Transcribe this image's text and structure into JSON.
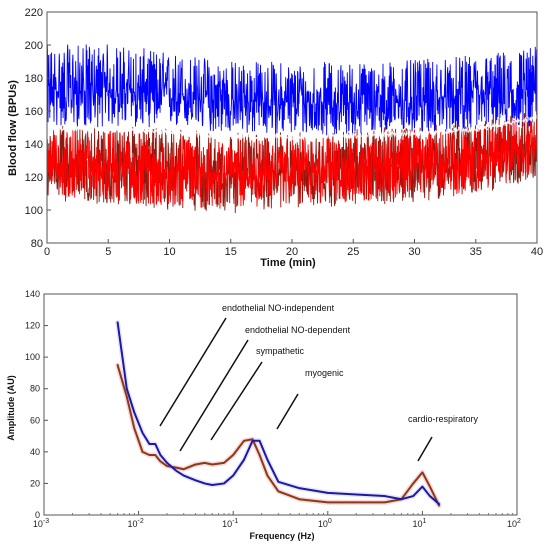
{
  "chart_data": [
    {
      "type": "line",
      "xlabel": "Time (min)",
      "ylabel": "Blood flow (BPUs)",
      "xlim": [
        0,
        40
      ],
      "ylim": [
        80,
        220
      ],
      "xticks": [
        "0",
        "5",
        "10",
        "15",
        "20",
        "25",
        "30",
        "35",
        "40"
      ],
      "yticks": [
        "80",
        "100",
        "120",
        "140",
        "160",
        "180",
        "200",
        "220"
      ],
      "grid": false,
      "colors": {
        "upper": "#0000ff",
        "lower": "#ff0000",
        "lower_shadow": "#8b1a10"
      },
      "series": [
        {
          "time_min": [
            0,
            5,
            10,
            15,
            20,
            25,
            30,
            35,
            40
          ],
          "mean": [
            172,
            172,
            170,
            166,
            165,
            165,
            166,
            168,
            172
          ],
          "range_low": [
            150,
            150,
            150,
            146,
            145,
            145,
            146,
            148,
            150
          ],
          "range_high": [
            200,
            201,
            196,
            191,
            190,
            190,
            191,
            194,
            200
          ]
        },
        {
          "time_min": [
            0,
            5,
            10,
            15,
            20,
            25,
            30,
            35,
            40
          ],
          "mean": [
            128,
            126,
            124,
            123,
            124,
            125,
            127,
            130,
            140
          ],
          "range_low": [
            107,
            104,
            101,
            99,
            102,
            103,
            106,
            110,
            120
          ],
          "range_high": [
            150,
            150,
            148,
            146,
            146,
            148,
            150,
            152,
            160
          ]
        }
      ]
    },
    {
      "type": "line",
      "xlabel": "Frequency (Hz)",
      "ylabel": "Amplitude (AU)",
      "xscale": "log",
      "xlim": [
        0.001,
        100
      ],
      "ylim": [
        0,
        140
      ],
      "xticks": [
        "10-3",
        "10-2",
        "10-1",
        "100",
        "101",
        "102"
      ],
      "yticks": [
        "0",
        "20",
        "40",
        "60",
        "80",
        "100",
        "120",
        "140"
      ],
      "grid": false,
      "colors": {
        "blue": "#1a1aa6",
        "brown": "#8b3a14"
      },
      "series": [
        {
          "x": [
            0.006,
            0.0075,
            0.009,
            0.011,
            0.013,
            0.015,
            0.017,
            0.02,
            0.025,
            0.03,
            0.04,
            0.05,
            0.06,
            0.08,
            0.1,
            0.13,
            0.16,
            0.19,
            0.23,
            0.3,
            0.5,
            1,
            2,
            4,
            6,
            8,
            10,
            12,
            15
          ],
          "y": [
            122,
            80,
            65,
            52,
            45,
            45,
            38,
            33,
            28,
            25,
            22,
            20,
            19,
            20,
            25,
            35,
            47,
            47,
            35,
            21,
            17,
            14,
            13,
            12,
            10,
            12,
            18,
            12,
            7
          ]
        },
        {
          "x": [
            0.006,
            0.0075,
            0.009,
            0.011,
            0.013,
            0.015,
            0.017,
            0.02,
            0.025,
            0.03,
            0.04,
            0.05,
            0.06,
            0.08,
            0.1,
            0.13,
            0.16,
            0.19,
            0.23,
            0.3,
            0.5,
            1,
            2,
            4,
            6,
            8,
            10,
            12,
            15
          ],
          "y": [
            95,
            75,
            55,
            40,
            38,
            38,
            34,
            31,
            30,
            29,
            32,
            33,
            32,
            33,
            38,
            47,
            48,
            38,
            25,
            15,
            10,
            8,
            8,
            8,
            10,
            20,
            27,
            18,
            6
          ]
        }
      ],
      "annotations": [
        "endothelial NO-independent",
        "endothelial NO-dependent",
        "sympathetic",
        "myogenic",
        "cardio-respiratory"
      ]
    }
  ]
}
